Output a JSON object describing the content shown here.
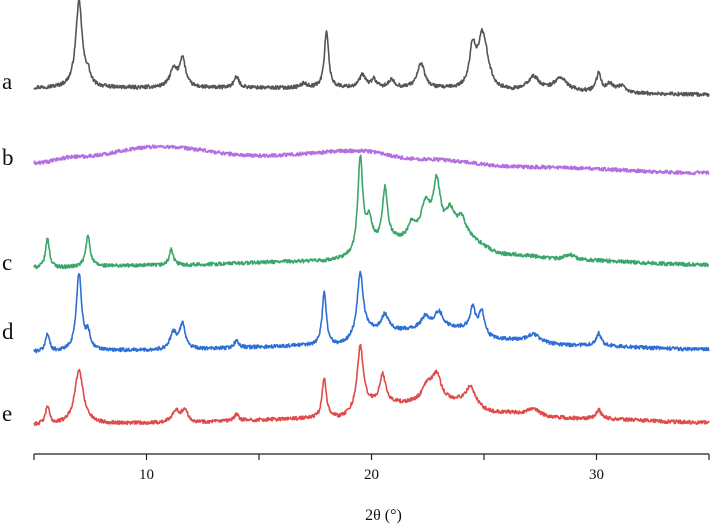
{
  "chart_data": {
    "type": "line",
    "xlabel": "2θ (°)",
    "ylabel": "",
    "xlim": [
      5,
      35
    ],
    "x_ticks": [
      10,
      20,
      30
    ],
    "x_tick_labels": [
      "10",
      "20",
      "30"
    ],
    "grid": false,
    "legend": "none",
    "y_axis_visible": false,
    "note": "",
    "series": [
      {
        "name": "a",
        "color": "#555555",
        "baseline": [
          [
            5,
            0.0
          ],
          [
            20,
            0.0
          ],
          [
            28,
            -0.5
          ],
          [
            35,
            -0.8
          ]
        ],
        "peaks": [
          [
            7.0,
            10.5,
            0.22
          ],
          [
            7.4,
            1.3,
            0.15
          ],
          [
            11.2,
            2.1,
            0.25
          ],
          [
            11.6,
            3.5,
            0.2
          ],
          [
            14.0,
            1.3,
            0.18
          ],
          [
            17.0,
            0.5,
            0.2
          ],
          [
            18.0,
            7.0,
            0.14
          ],
          [
            19.6,
            1.5,
            0.22
          ],
          [
            20.1,
            1.0,
            0.15
          ],
          [
            20.9,
            0.9,
            0.2
          ],
          [
            22.2,
            3.0,
            0.25
          ],
          [
            24.5,
            5.0,
            0.22
          ],
          [
            24.9,
            5.0,
            0.25
          ],
          [
            25.1,
            2.5,
            0.3
          ],
          [
            27.2,
            1.7,
            0.4
          ],
          [
            28.4,
            1.6,
            0.45
          ],
          [
            30.1,
            2.2,
            0.17
          ],
          [
            30.6,
            1.0,
            0.2
          ],
          [
            31.1,
            0.8,
            0.25
          ]
        ]
      },
      {
        "name": "b",
        "color": "#b36ee0",
        "baseline": [
          [
            5,
            0.0
          ],
          [
            7,
            0.8
          ],
          [
            10.5,
            2.0
          ],
          [
            15,
            0.9
          ],
          [
            19.5,
            1.5
          ],
          [
            22,
            0.5
          ],
          [
            27,
            -0.5
          ],
          [
            35,
            -1.2
          ]
        ],
        "peaks": []
      },
      {
        "name": "c",
        "color": "#3aa66a",
        "baseline": [
          [
            5,
            0.0
          ],
          [
            10,
            0.3
          ],
          [
            18,
            0.8
          ],
          [
            19,
            1.1
          ],
          [
            21,
            3.2
          ],
          [
            24,
            3.5
          ],
          [
            26,
            1.6
          ],
          [
            29,
            0.9
          ],
          [
            35,
            0.4
          ]
        ],
        "peaks": [
          [
            5.6,
            3.6,
            0.13
          ],
          [
            7.4,
            3.8,
            0.15
          ],
          [
            11.1,
            1.9,
            0.14
          ],
          [
            19.5,
            11.7,
            0.17
          ],
          [
            19.9,
            3.5,
            0.2
          ],
          [
            20.6,
            6.5,
            0.17
          ],
          [
            21.8,
            1.8,
            0.25
          ],
          [
            22.4,
            4.0,
            0.3
          ],
          [
            22.9,
            6.5,
            0.25
          ],
          [
            23.5,
            3.0,
            0.3
          ],
          [
            24.0,
            2.2,
            0.3
          ],
          [
            28.8,
            0.7,
            0.4
          ]
        ]
      },
      {
        "name": "d",
        "color": "#2e6fd6",
        "baseline": [
          [
            5,
            0.0
          ],
          [
            10,
            0.2
          ],
          [
            18.5,
            0.8
          ],
          [
            20,
            2.5
          ],
          [
            24,
            2.8
          ],
          [
            25.5,
            1.5
          ],
          [
            29,
            0.8
          ],
          [
            35,
            0.3
          ]
        ],
        "peaks": [
          [
            5.6,
            2.2,
            0.13
          ],
          [
            7.0,
            9.5,
            0.18
          ],
          [
            7.4,
            2.0,
            0.15
          ],
          [
            11.2,
            2.0,
            0.22
          ],
          [
            11.6,
            3.0,
            0.2
          ],
          [
            14.0,
            0.9,
            0.15
          ],
          [
            17.9,
            6.5,
            0.14
          ],
          [
            19.5,
            7.5,
            0.2
          ],
          [
            20.6,
            2.0,
            0.25
          ],
          [
            22.4,
            1.5,
            0.3
          ],
          [
            23.0,
            2.0,
            0.3
          ],
          [
            24.5,
            2.8,
            0.18
          ],
          [
            24.9,
            2.8,
            0.2
          ],
          [
            27.2,
            1.0,
            0.4
          ],
          [
            30.1,
            1.5,
            0.17
          ]
        ]
      },
      {
        "name": "e",
        "color": "#e04a4a",
        "baseline": [
          [
            5,
            0.0
          ],
          [
            10,
            0.2
          ],
          [
            18.5,
            0.8
          ],
          [
            20,
            2.5
          ],
          [
            24,
            2.8
          ],
          [
            25.5,
            1.5
          ],
          [
            29,
            0.8
          ],
          [
            35,
            0.3
          ]
        ],
        "peaks": [
          [
            5.6,
            2.2,
            0.13
          ],
          [
            7.0,
            6.5,
            0.3
          ],
          [
            11.3,
            1.5,
            0.25
          ],
          [
            11.7,
            1.5,
            0.2
          ],
          [
            14.0,
            0.8,
            0.15
          ],
          [
            17.9,
            5.0,
            0.14
          ],
          [
            19.5,
            7.5,
            0.2
          ],
          [
            20.5,
            3.5,
            0.2
          ],
          [
            22.5,
            2.0,
            0.35
          ],
          [
            22.9,
            3.0,
            0.3
          ],
          [
            24.4,
            2.0,
            0.3
          ],
          [
            27.2,
            0.8,
            0.4
          ],
          [
            30.1,
            1.1,
            0.17
          ]
        ]
      }
    ]
  }
}
